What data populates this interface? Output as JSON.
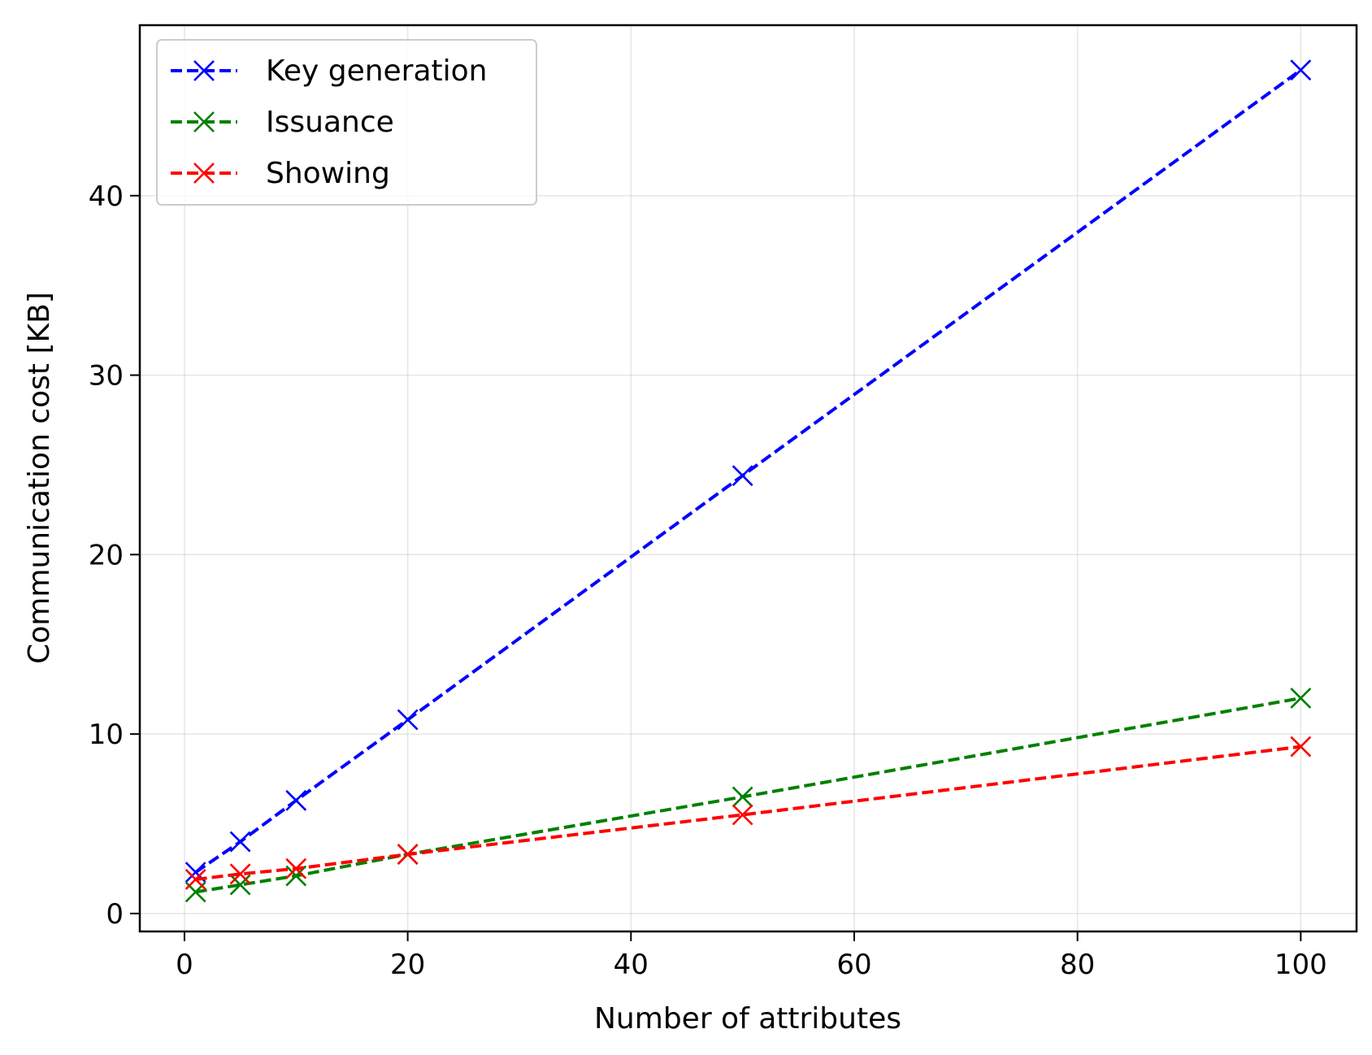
{
  "chart_data": {
    "type": "line",
    "title": "",
    "xlabel": "Number of attributes",
    "ylabel": "Communication cost [KB]",
    "xlim": [
      -4,
      105
    ],
    "ylim": [
      -1,
      49.5
    ],
    "xticks": [
      0,
      20,
      40,
      60,
      80,
      100
    ],
    "yticks": [
      0,
      10,
      20,
      30,
      40
    ],
    "grid": true,
    "legend": "top-left",
    "x": [
      1,
      5,
      10,
      20,
      50,
      100
    ],
    "series": [
      {
        "name": "Key generation",
        "color": "#0000ff",
        "line_style": "dashed",
        "marker": "x",
        "values": [
          2.3,
          4.0,
          6.3,
          10.8,
          24.4,
          47.0
        ]
      },
      {
        "name": "Issuance",
        "color": "#008000",
        "line_style": "dashed",
        "marker": "x",
        "values": [
          1.2,
          1.6,
          2.1,
          3.3,
          6.5,
          12.0
        ]
      },
      {
        "name": "Showing",
        "color": "#ff0000",
        "line_style": "dashed",
        "marker": "x",
        "values": [
          1.9,
          2.2,
          2.5,
          3.3,
          5.5,
          9.3
        ]
      }
    ]
  }
}
